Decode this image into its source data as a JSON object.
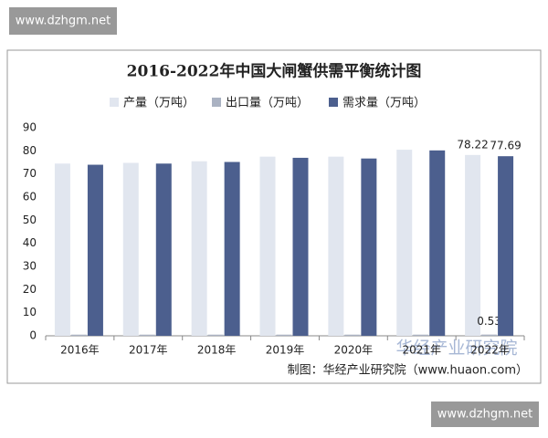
{
  "chart_data": {
    "type": "bar",
    "title": "2016-2022年中国大闸蟹供需平衡统计图",
    "categories": [
      "2016年",
      "2017年",
      "2018年",
      "2019年",
      "2020年",
      "2021年",
      "2022年"
    ],
    "series": [
      {
        "name": "产量（万吨）",
        "color": "#e1e6ef",
        "values": [
          74.5,
          74.8,
          75.5,
          77.5,
          77.5,
          80.5,
          78.22
        ],
        "value_labels": [
          null,
          null,
          null,
          null,
          null,
          null,
          "78.22"
        ]
      },
      {
        "name": "出口量（万吨）",
        "color": "#aab2c2",
        "values": [
          0.5,
          0.5,
          0.5,
          0.5,
          0.5,
          0.5,
          0.53
        ],
        "value_labels": [
          null,
          null,
          null,
          null,
          null,
          null,
          "0.53"
        ]
      },
      {
        "name": "需求量（万吨）",
        "color": "#4c5f8e",
        "values": [
          74,
          74.5,
          75.2,
          77,
          76.7,
          80.2,
          77.69
        ],
        "value_labels": [
          null,
          null,
          null,
          null,
          null,
          null,
          "77.69"
        ]
      }
    ],
    "ylim": [
      0,
      90
    ],
    "yticks": [
      0,
      10,
      20,
      30,
      40,
      50,
      60,
      70,
      80,
      90
    ],
    "grid": false,
    "source": "制图：华经产业研究院（www.huaon.com）"
  },
  "watermarks": [
    "www.dzhgm.net",
    "华经产业研究院",
    "www.dzhgm.net"
  ]
}
